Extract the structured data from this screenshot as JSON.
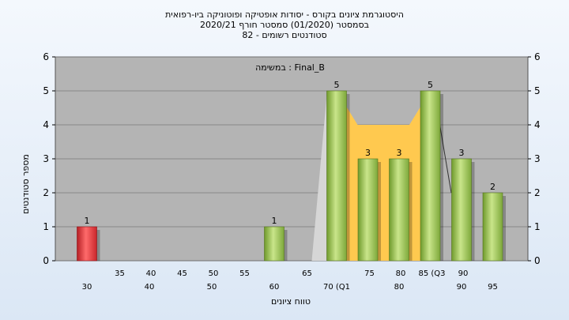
{
  "title_lines": [
    "היסטוגרמת ציונים בקורס - יסודות אופטיקה ופוטוניקה ביו-רפואית",
    "בסמסטר  (01/2020)  סמסטר חורף  2020/21",
    "סטודנטים רשומים - 82"
  ],
  "task_label": "במשימה : Final_B",
  "colors": {
    "plot_bg": "#b4b4b4",
    "bar_green": "#9cc44b",
    "bar_red": "#e8373b",
    "area_fill": "#ffc94f",
    "light_area": "#d6d6d6"
  },
  "chart_data": {
    "type": "bar",
    "xlabel": "טווח ציונים",
    "ylabel": "מספר סטודנטים",
    "ylim": [
      0,
      6
    ],
    "y_ticks": [
      "0",
      "1",
      "2",
      "3",
      "4",
      "5",
      "6"
    ],
    "x_ticks_upper": [
      "35",
      "40",
      "45",
      "50",
      "55",
      "65",
      "75",
      "80",
      "85 (Q3",
      "90"
    ],
    "x_ticks_lower": [
      "30",
      "40",
      "50",
      "60",
      "70 (Q1",
      "80",
      "90",
      "95"
    ],
    "bars": [
      {
        "x": 30,
        "value": 1,
        "label": "1",
        "color": "red"
      },
      {
        "x": 60,
        "value": 1,
        "label": "1",
        "color": "green"
      },
      {
        "x": 70,
        "value": 5,
        "label": "5",
        "color": "green"
      },
      {
        "x": 75,
        "value": 3,
        "label": "3",
        "color": "green"
      },
      {
        "x": 80,
        "value": 3,
        "label": "3",
        "color": "green"
      },
      {
        "x": 85,
        "value": 5,
        "label": "5",
        "color": "green"
      },
      {
        "x": 90,
        "value": 3,
        "label": "3",
        "color": "green"
      },
      {
        "x": 95,
        "value": 2,
        "label": "2",
        "color": "green"
      }
    ],
    "area_series": [
      {
        "x": 65,
        "y": 0
      },
      {
        "x": 70,
        "y": 5
      },
      {
        "x": 75,
        "y": 4
      },
      {
        "x": 80,
        "y": 4
      },
      {
        "x": 85,
        "y": 5
      },
      {
        "x": 90,
        "y": 0
      }
    ]
  }
}
